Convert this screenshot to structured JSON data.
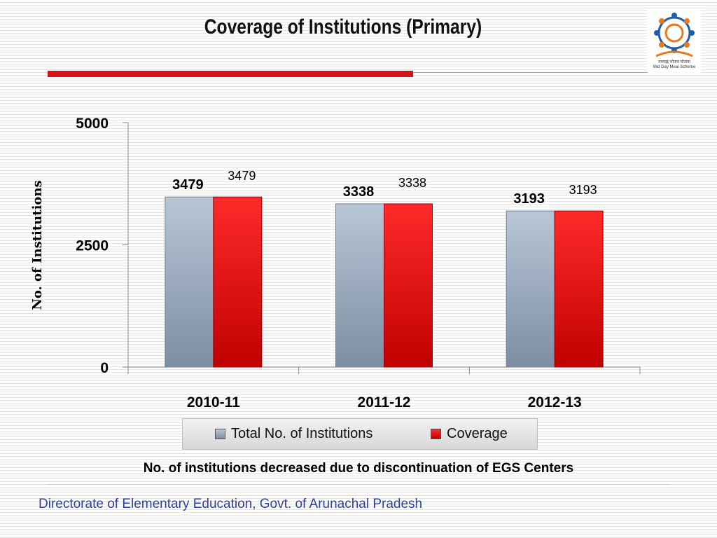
{
  "slide": {
    "title": "Coverage  of Institutions (Primary)",
    "note": "No. of institutions decreased due to discontinuation of EGS Centers",
    "footer": "Directorate of Elementary Education, Govt. of Arunachal Pradesh",
    "logo_text": "मध्याह्न भोजन योजना",
    "logo_subtext": "Mid Day Meal Scheme"
  },
  "colors": {
    "accent_red": "#d4141a",
    "series_total": "#9fb0c5",
    "series_coverage": "#e8141a",
    "footer_blue": "#2f3fa0"
  },
  "chart_data": {
    "type": "bar",
    "categories": [
      "2010-11",
      "2011-12",
      "2012-13"
    ],
    "series": [
      {
        "name": "Total No. of Institutions",
        "values": [
          3479,
          3338,
          3193
        ]
      },
      {
        "name": "Coverage",
        "values": [
          3479,
          3338,
          3193
        ]
      }
    ],
    "ylabel": "No. of Institutions",
    "xlabel": "",
    "ylim": [
      0,
      5000
    ],
    "yticks": [
      0,
      2500,
      5000
    ],
    "legend_position": "bottom",
    "grid": false
  }
}
